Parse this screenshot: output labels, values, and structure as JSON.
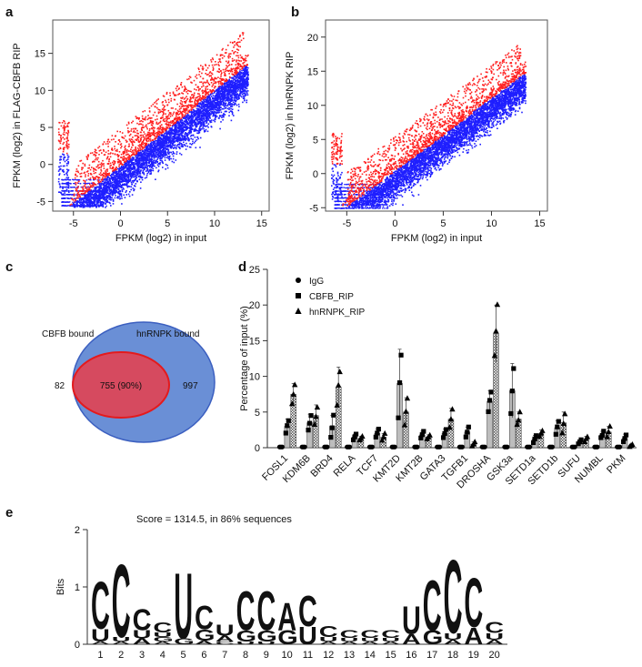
{
  "panels": {
    "a": "a",
    "b": "b",
    "c": "c",
    "d": "d",
    "e": "e"
  },
  "chart_data": [
    {
      "id": "a",
      "type": "scatter",
      "xlabel": "FPKM (log2) in input",
      "ylabel": "FPKM (log2) in FLAG-CBFB RIP",
      "xlim": [
        -7.2,
        15.8
      ],
      "ylim": [
        -6.3,
        19.5
      ],
      "xticks": [
        -5,
        0,
        5,
        10,
        15
      ],
      "yticks": [
        -5,
        0,
        5,
        10,
        15
      ],
      "series": [
        {
          "color": "#1f1fff",
          "description_points": [
            [
              -6.5,
              -5.5
            ],
            [
              0,
              -1
            ],
            [
              5,
              3
            ],
            [
              10,
              8
            ],
            [
              13,
              12
            ]
          ]
        },
        {
          "color": "#ff2020",
          "description_points": [
            [
              -6.5,
              3
            ],
            [
              0,
              4
            ],
            [
              5,
              10
            ],
            [
              11,
              14
            ],
            [
              14,
              18
            ]
          ]
        }
      ],
      "grid": false
    },
    {
      "id": "b",
      "type": "scatter",
      "xlabel": "FPKM (log2) in input",
      "ylabel": "FPKM (log2) in hnRNPK RIP",
      "xlim": [
        -7.2,
        15.8
      ],
      "ylim": [
        -5.5,
        22.5
      ],
      "xticks": [
        -5,
        0,
        5,
        10,
        15
      ],
      "yticks": [
        -5,
        0,
        5,
        10,
        15,
        20
      ],
      "series": [
        {
          "color": "#1f1fff",
          "description_points": [
            [
              -6.5,
              -5
            ],
            [
              0,
              -1
            ],
            [
              5,
              4
            ],
            [
              10,
              9
            ],
            [
              13,
              13
            ]
          ]
        },
        {
          "color": "#ff2020",
          "description_points": [
            [
              -6.5,
              3
            ],
            [
              0,
              6
            ],
            [
              5,
              11
            ],
            [
              11,
              16
            ],
            [
              14,
              21
            ]
          ]
        }
      ],
      "grid": false
    },
    {
      "id": "c",
      "type": "venn",
      "sets": [
        {
          "label": "CBFB bound",
          "only": "82",
          "fill": "#d64a5f",
          "stroke": "#e41a1c"
        },
        {
          "label": "hnRNPK bound",
          "only": "997",
          "fill": "#6a8fd6",
          "stroke": "#3b5fc0"
        }
      ],
      "overlap": "755 (90%)"
    },
    {
      "id": "d",
      "type": "bar",
      "ylabel": "Percentage of input (%)",
      "ylim": [
        0,
        25
      ],
      "yticks": [
        0,
        5,
        10,
        15,
        20,
        25
      ],
      "categories": [
        "FOSL1",
        "KDM6B",
        "BRD4",
        "RELA",
        "TCF7",
        "KMT2D",
        "KMT2B",
        "GATA3",
        "TGFB1",
        "DROSHA",
        "GSK3a",
        "SETD1a",
        "SETD1b",
        "SUFU",
        "NUMBL",
        "PKM"
      ],
      "series": [
        {
          "name": "IgG",
          "marker": "circle",
          "values": [
            0.1,
            0.1,
            0.1,
            0.1,
            0.1,
            0.1,
            0.1,
            0.1,
            0.1,
            0.1,
            0.1,
            0.1,
            0.1,
            0.1,
            0.1,
            0.1
          ]
        },
        {
          "name": "CBFB_RIP",
          "marker": "square",
          "values": [
            3.0,
            3.5,
            3.0,
            1.5,
            2.0,
            9.0,
            1.8,
            2.0,
            2.2,
            6.5,
            8.0,
            1.2,
            2.8,
            0.8,
            1.8,
            1.3
          ]
        },
        {
          "name": "hnRNPK_RIP",
          "marker": "triangle",
          "values": [
            7.5,
            4.5,
            8.5,
            1.3,
            1.5,
            5.0,
            1.5,
            4.0,
            0.5,
            16.0,
            4.0,
            2.0,
            3.5,
            1.2,
            2.2,
            0.3
          ]
        }
      ],
      "errors": [
        [
          0,
          0,
          0,
          0,
          0,
          0,
          0,
          0,
          0,
          0,
          0,
          0,
          0,
          0,
          0,
          0
        ],
        [
          1.0,
          1.2,
          1.5,
          0.4,
          0.6,
          4.8,
          0.5,
          0.6,
          0.7,
          1.5,
          3.8,
          0.5,
          1.0,
          0.3,
          0.5,
          0.6
        ],
        [
          1.5,
          1.5,
          2.8,
          0.3,
          0.5,
          2.0,
          0.3,
          1.5,
          0.3,
          4.0,
          1.0,
          0.5,
          1.5,
          0.4,
          0.8,
          0.2
        ]
      ],
      "legend_position": "top-left"
    },
    {
      "id": "e",
      "type": "sequence-logo",
      "title": "Score = 1314.5, in 86% sequences",
      "ylabel": "Bits",
      "ylim": [
        0,
        2
      ],
      "yticks": [
        0,
        1,
        2
      ],
      "positions": [
        1,
        2,
        3,
        4,
        5,
        6,
        7,
        8,
        9,
        10,
        11,
        12,
        13,
        14,
        15,
        16,
        17,
        18,
        19,
        20
      ],
      "stacks": [
        [
          [
            "A",
            0.05
          ],
          [
            "U",
            0.22
          ],
          [
            "C",
            0.85
          ]
        ],
        [
          [
            "A",
            0.05
          ],
          [
            "U",
            0.08
          ],
          [
            "C",
            1.3
          ]
        ],
        [
          [
            "A",
            0.1
          ],
          [
            "U",
            0.15
          ],
          [
            "C",
            0.38
          ]
        ],
        [
          [
            "A",
            0.05
          ],
          [
            "G",
            0.08
          ],
          [
            "U",
            0.08
          ],
          [
            "C",
            0.18
          ]
        ],
        [
          [
            "G",
            0.1
          ],
          [
            "U",
            1.18
          ]
        ],
        [
          [
            "A",
            0.06
          ],
          [
            "G",
            0.2
          ],
          [
            "C",
            0.42
          ]
        ],
        [
          [
            "C",
            0.05
          ],
          [
            "A",
            0.1
          ],
          [
            "U",
            0.2
          ]
        ],
        [
          [
            "U",
            0.05
          ],
          [
            "G",
            0.2
          ],
          [
            "C",
            0.7
          ]
        ],
        [
          [
            "U",
            0.05
          ],
          [
            "G",
            0.2
          ],
          [
            "C",
            0.7
          ]
        ],
        [
          [
            "G",
            0.25
          ],
          [
            "A",
            0.5
          ]
        ],
        [
          [
            "U",
            0.32
          ],
          [
            "C",
            0.55
          ]
        ],
        [
          [
            "A",
            0.05
          ],
          [
            "U",
            0.08
          ],
          [
            "C",
            0.2
          ]
        ],
        [
          [
            "A",
            0.05
          ],
          [
            "U",
            0.06
          ],
          [
            "C",
            0.14
          ]
        ],
        [
          [
            "A",
            0.05
          ],
          [
            "U",
            0.06
          ],
          [
            "C",
            0.14
          ]
        ],
        [
          [
            "A",
            0.05
          ],
          [
            "U",
            0.06
          ],
          [
            "C",
            0.14
          ]
        ],
        [
          [
            "A",
            0.18
          ],
          [
            "U",
            0.5
          ]
        ],
        [
          [
            "G",
            0.25
          ],
          [
            "C",
            0.9
          ]
        ],
        [
          [
            "A",
            0.08
          ],
          [
            "U",
            0.12
          ],
          [
            "C",
            1.32
          ]
        ],
        [
          [
            "A",
            0.3
          ],
          [
            "C",
            0.88
          ]
        ],
        [
          [
            "A",
            0.08
          ],
          [
            "U",
            0.12
          ],
          [
            "C",
            0.2
          ]
        ]
      ],
      "letter_colors": {
        "C": "#1a2fd1",
        "U": "#f08b14",
        "G": "#f08b14",
        "A": "#f08b14"
      }
    }
  ]
}
